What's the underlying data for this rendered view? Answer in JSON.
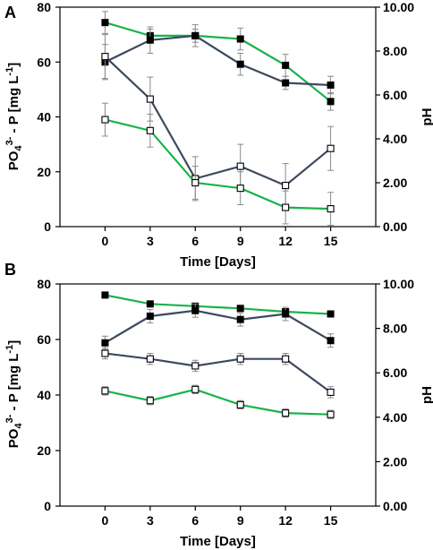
{
  "colors": {
    "green": "#19b34a",
    "blue": "#3b4a5e",
    "error": "#8a8a8a",
    "axis": "#000000"
  },
  "chart_data": [
    {
      "panel": "A",
      "type": "line",
      "x": [
        0,
        3,
        6,
        9,
        12,
        15
      ],
      "xlabel": "Time [Days]",
      "ylabel_parts": {
        "a": "PO",
        "sub": "4",
        "sup": "3-",
        "b": " - P [mg L",
        "sup2": "-1",
        "c": "]"
      },
      "y2label": "pH",
      "ylim": [
        0,
        80
      ],
      "y2lim": [
        0,
        10
      ],
      "yticks": [
        "0",
        "20",
        "40",
        "60",
        "80"
      ],
      "y2ticks": [
        "0.00",
        "2.00",
        "4.00",
        "6.00",
        "8.00",
        "10.00"
      ],
      "xticks": [
        "0",
        "3",
        "6",
        "9",
        "12",
        "15"
      ],
      "series": [
        {
          "color": "green",
          "marker": "filled",
          "axis": "pH",
          "values": [
            9.3,
            8.7,
            8.7,
            8.55,
            7.35,
            5.7
          ],
          "err": [
            0.5,
            0.3,
            0.3,
            0.5,
            0.5,
            0.4
          ]
        },
        {
          "color": "blue",
          "marker": "filled",
          "axis": "pH",
          "values": [
            7.5,
            8.5,
            8.7,
            7.4,
            6.55,
            6.45
          ],
          "err": [
            0.8,
            0.6,
            0.5,
            0.5,
            0.3,
            0.4
          ]
        },
        {
          "color": "blue",
          "marker": "open",
          "axis": "PO4",
          "values": [
            62,
            46.5,
            17.5,
            22,
            15,
            28.5
          ],
          "err": [
            8,
            8,
            8,
            8,
            8,
            8
          ]
        },
        {
          "color": "green",
          "marker": "open",
          "axis": "PO4",
          "values": [
            39,
            35,
            16,
            14,
            7,
            6.5
          ],
          "err": [
            6,
            6,
            6,
            6,
            6,
            6
          ]
        }
      ]
    },
    {
      "panel": "B",
      "type": "line",
      "x": [
        0,
        3,
        6,
        9,
        12,
        15
      ],
      "xlabel": "Time [Days]",
      "ylabel_parts": {
        "a": "PO",
        "sub": "4",
        "sup": "3-",
        "b": " - P [mg L",
        "sup2": "-1",
        "c": "]"
      },
      "y2label": "pH",
      "ylim": [
        0,
        80
      ],
      "y2lim": [
        0,
        10
      ],
      "yticks": [
        "0",
        "20",
        "40",
        "60",
        "80"
      ],
      "y2ticks": [
        "0.00",
        "2.00",
        "4.00",
        "6.00",
        "8.00",
        "10.00"
      ],
      "xticks": [
        "0",
        "3",
        "6",
        "9",
        "12",
        "15"
      ],
      "series": [
        {
          "color": "green",
          "marker": "filled",
          "axis": "pH",
          "values": [
            9.5,
            9.1,
            9.0,
            8.9,
            8.75,
            8.65
          ],
          "err": [
            0.1,
            0.1,
            0.1,
            0.1,
            0.1,
            0.1
          ]
        },
        {
          "color": "blue",
          "marker": "filled",
          "axis": "pH",
          "values": [
            7.35,
            8.55,
            8.8,
            8.4,
            8.65,
            7.45
          ],
          "err": [
            0.3,
            0.3,
            0.3,
            0.3,
            0.3,
            0.3
          ]
        },
        {
          "color": "blue",
          "marker": "open",
          "axis": "PO4",
          "values": [
            55,
            53,
            50.5,
            53,
            53,
            41
          ],
          "err": [
            2,
            2,
            2,
            2,
            2,
            2
          ]
        },
        {
          "color": "green",
          "marker": "open",
          "axis": "PO4",
          "values": [
            41.5,
            38,
            42,
            36.5,
            33.5,
            33
          ],
          "err": [
            1.5,
            1.5,
            1.5,
            1.5,
            1.5,
            1.5
          ]
        }
      ]
    }
  ]
}
